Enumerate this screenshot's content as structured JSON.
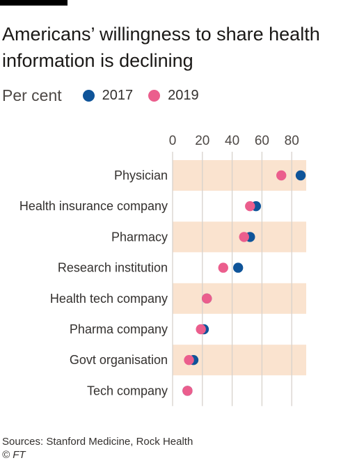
{
  "title": "Americans’ willingness to share health information is declining",
  "unit": "Per cent",
  "footer": {
    "source": "Sources: Stanford Medicine, Rock Health",
    "copyright": "© FT"
  },
  "colors": {
    "2017": "#0f5499",
    "2019": "#eb5e8d",
    "band": "#fae3cf",
    "grid": "#d7d2cc"
  },
  "chart_data": {
    "type": "scatter",
    "title": "Americans’ willingness to share health information is declining",
    "subtitle": "Per cent",
    "xlim": [
      0,
      90
    ],
    "xticks": [
      0,
      20,
      40,
      60,
      80
    ],
    "legend_position": "top",
    "grid": true,
    "categories": [
      "Physician",
      "Health insurance company",
      "Pharmacy",
      "Research institution",
      "Health tech company",
      "Pharma company",
      "Govt organisation",
      "Tech company"
    ],
    "series": [
      {
        "name": "2017",
        "values": [
          86,
          56,
          52,
          44,
          23,
          21,
          14,
          10
        ]
      },
      {
        "name": "2019",
        "values": [
          73,
          52,
          48,
          34,
          23,
          19,
          11,
          10
        ]
      }
    ]
  }
}
